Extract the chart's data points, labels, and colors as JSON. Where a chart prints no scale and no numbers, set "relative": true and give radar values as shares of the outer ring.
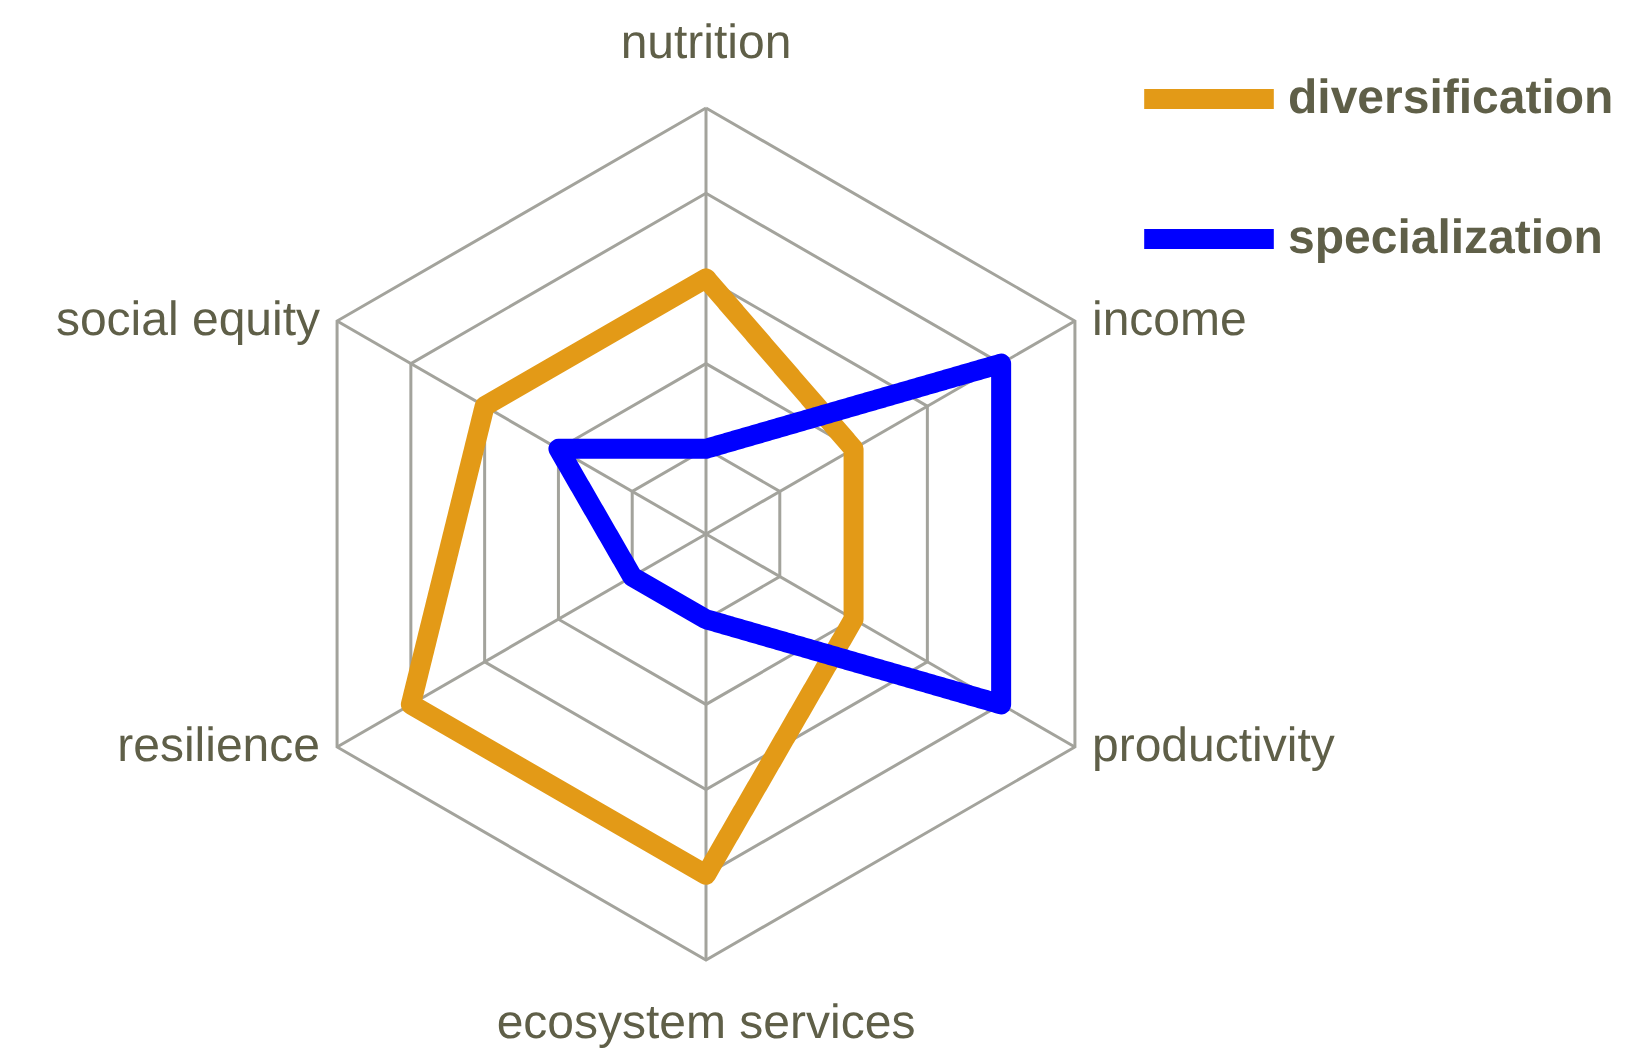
{
  "chart_data": {
    "type": "radar",
    "relative": true,
    "categories": [
      "nutrition",
      "income",
      "productivity",
      "ecosystem services",
      "resilience",
      "social equity"
    ],
    "series": [
      {
        "name": "diversification",
        "color": "#e39a17",
        "values": [
          0.6,
          0.4,
          0.4,
          0.8,
          0.8,
          0.6
        ]
      },
      {
        "name": "specialization",
        "color": "#0000ff",
        "values": [
          0.2,
          0.8,
          0.8,
          0.2,
          0.2,
          0.4
        ]
      }
    ],
    "grid": true,
    "legend": "top right",
    "line_style": "solid"
  }
}
